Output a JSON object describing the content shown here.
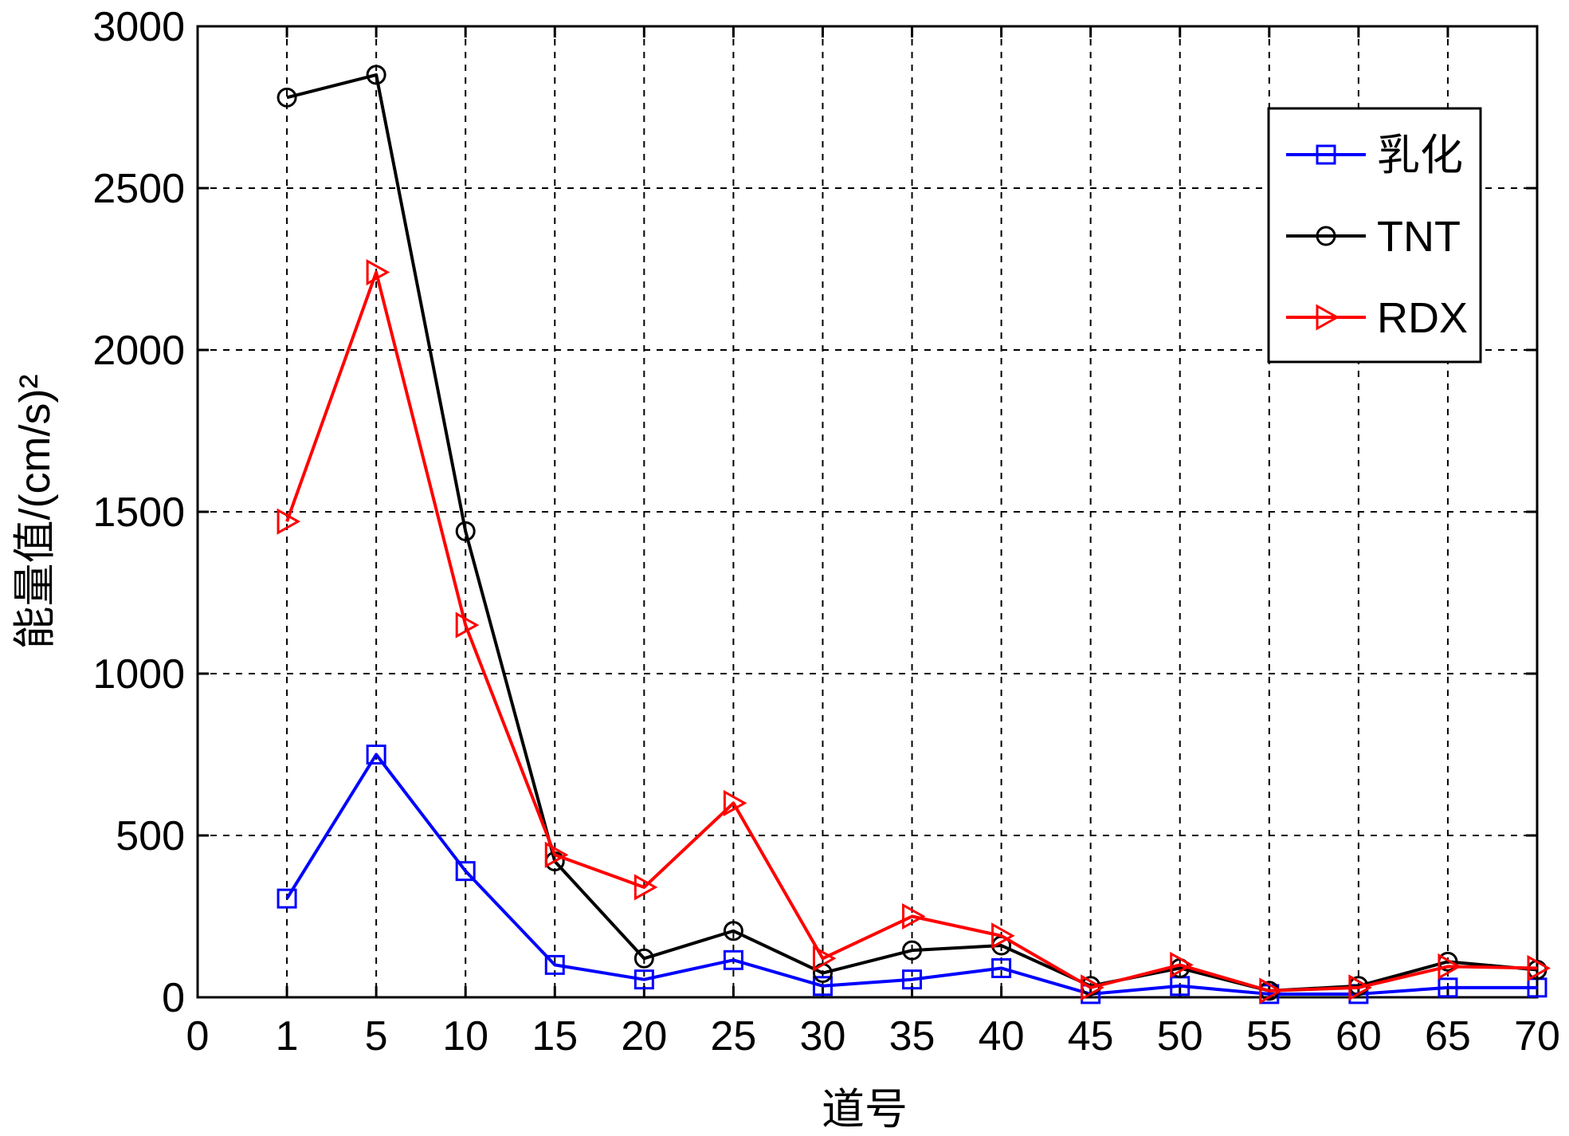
{
  "chart_data": {
    "type": "line",
    "xlabel": "道号",
    "ylabel": "能量值/(cm/s)²",
    "ylim": [
      0,
      3000
    ],
    "yticks": [
      0,
      500,
      1000,
      1500,
      2000,
      2500,
      3000
    ],
    "categories": [
      "0",
      "1",
      "5",
      "10",
      "15",
      "20",
      "25",
      "30",
      "35",
      "40",
      "45",
      "50",
      "55",
      "60",
      "65",
      "70"
    ],
    "x": [
      "1",
      "5",
      "10",
      "15",
      "20",
      "25",
      "30",
      "35",
      "40",
      "45",
      "50",
      "55",
      "60",
      "65",
      "70"
    ],
    "grid": true,
    "legend_position": "top-right",
    "series": [
      {
        "name": "乳化",
        "color": "#0000ff",
        "marker": "square",
        "values": [
          305,
          750,
          390,
          100,
          55,
          115,
          35,
          55,
          90,
          10,
          35,
          10,
          10,
          30,
          30
        ]
      },
      {
        "name": "TNT",
        "color": "#000000",
        "marker": "circle",
        "values": [
          2780,
          2850,
          1440,
          420,
          120,
          205,
          75,
          145,
          160,
          35,
          90,
          20,
          35,
          110,
          85
        ]
      },
      {
        "name": "RDX",
        "color": "#ff0000",
        "marker": "triangle-right",
        "values": [
          1470,
          2240,
          1150,
          440,
          340,
          600,
          120,
          250,
          190,
          30,
          100,
          20,
          30,
          95,
          90
        ]
      }
    ]
  }
}
